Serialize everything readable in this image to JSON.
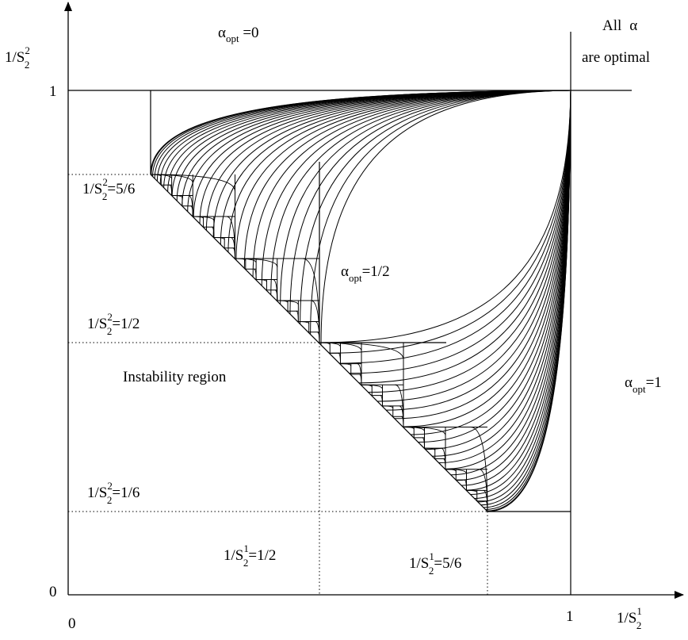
{
  "axes": {
    "x_label": {
      "base": "1/S",
      "sup": "1",
      "sub": "2"
    },
    "y_label": {
      "base": "1/S",
      "sup": "2",
      "sub": "2"
    },
    "origin_x": "0",
    "origin_y": "0",
    "x_one": "1",
    "y_one": "1"
  },
  "regions": {
    "top": {
      "greek": "α",
      "sub": "opt",
      "rest": " =0"
    },
    "corner": {
      "line1": "All",
      "greek": "α",
      "line2": "are optimal"
    },
    "center": {
      "greek": "α",
      "sub": "opt",
      "rest": "=1/2"
    },
    "right": {
      "greek": "α",
      "sub": "opt",
      "rest": "=1"
    },
    "instability": "Instability region"
  },
  "levels": {
    "y_5_6": {
      "base": "1/S",
      "sup": "2",
      "sub": "2",
      "rest": "=5/6"
    },
    "y_1_2": {
      "base": "1/S",
      "sup": "2",
      "sub": "2",
      "rest": "=1/2"
    },
    "y_1_6": {
      "base": "1/S",
      "sup": "2",
      "sub": "2",
      "rest": "=1/6"
    },
    "x_1_2": {
      "base": "1/S",
      "sup": "1",
      "sub": "2",
      "rest": "=1/2"
    },
    "x_5_6": {
      "base": "1/S",
      "sup": "1",
      "sub": "2",
      "rest": "=5/6"
    }
  },
  "chart_data": {
    "type": "region-diagram",
    "x_range": [
      0,
      1
    ],
    "y_range": [
      0,
      1
    ],
    "marked_levels_x": [
      0.5,
      0.8333
    ],
    "marked_levels_y": [
      0.1667,
      0.5,
      0.8333
    ],
    "instability_boundary": "x + y = 1",
    "regions": [
      {
        "label": "α_opt =0",
        "where": "y > 1"
      },
      {
        "label": "All α are optimal",
        "where": "x > 1, y > 1"
      },
      {
        "label": "α_opt=1/2",
        "where": "fractal region above x + y = 1"
      },
      {
        "label": "α_opt=1",
        "where": "x > 1"
      },
      {
        "label": "Instability region",
        "where": "x + y < 1"
      }
    ]
  }
}
